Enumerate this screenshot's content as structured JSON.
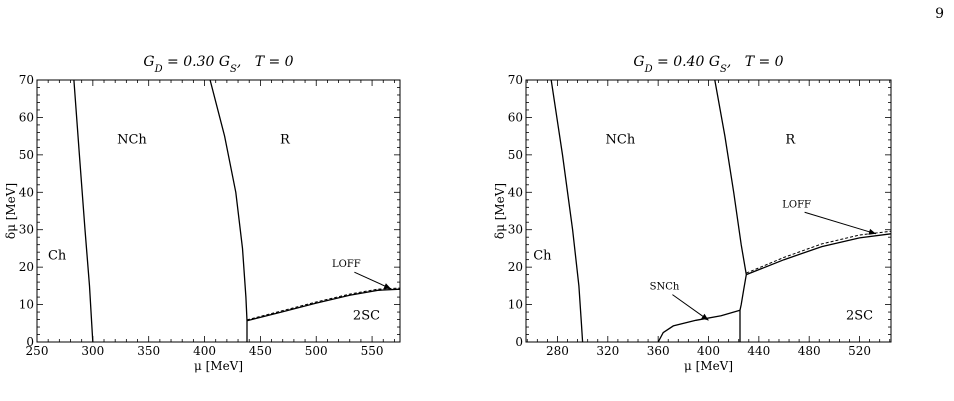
{
  "page_number": "9",
  "chart_data": [
    {
      "type": "line",
      "title": "G_D = 0.30 G_S,   T = 0",
      "xlabel": "μ [MeV]",
      "ylabel": "δμ [MeV]",
      "xlim": [
        250,
        575
      ],
      "ylim": [
        0,
        70
      ],
      "xticks": [
        250,
        300,
        350,
        400,
        450,
        500,
        550
      ],
      "yticks": [
        0,
        10,
        20,
        30,
        40,
        50,
        60,
        70
      ],
      "regions": [
        {
          "label": "Ch",
          "x": 268,
          "y": 22
        },
        {
          "label": "NCh",
          "x": 335,
          "y": 53
        },
        {
          "label": "R",
          "x": 472,
          "y": 53
        },
        {
          "label": "2SC",
          "x": 545,
          "y": 6
        }
      ],
      "series": [
        {
          "style": "solid",
          "points": [
            [
              283,
              70
            ],
            [
              288,
              50
            ],
            [
              293,
              30
            ],
            [
              297,
              15
            ],
            [
              299,
              5
            ],
            [
              300,
              0
            ]
          ]
        },
        {
          "style": "solid",
          "points": [
            [
              405,
              70
            ],
            [
              418,
              55
            ],
            [
              428,
              40
            ],
            [
              434,
              25
            ],
            [
              437,
              12
            ],
            [
              438,
              5.7
            ],
            [
              438,
              0
            ]
          ]
        },
        {
          "style": "solid",
          "points": [
            [
              438,
              5.7
            ],
            [
              470,
              8.1
            ],
            [
              500,
              10.4
            ],
            [
              530,
              12.5
            ],
            [
              555,
              13.8
            ],
            [
              575,
              14.1
            ]
          ]
        },
        {
          "style": "dashed",
          "points": [
            [
              438,
              5.9
            ],
            [
              470,
              8.4
            ],
            [
              500,
              10.7
            ],
            [
              530,
              12.8
            ],
            [
              555,
              14.1
            ],
            [
              575,
              14.4
            ]
          ]
        }
      ],
      "annotations": [
        {
          "label": "LOFF",
          "x": 527,
          "y": 20,
          "arrow_to": [
            567,
            14.2
          ]
        }
      ]
    },
    {
      "type": "line",
      "title": "G_D = 0.40 G_S,   T = 0",
      "xlabel": "μ [MeV]",
      "ylabel": "δμ [MeV]",
      "xlim": [
        255,
        545
      ],
      "ylim": [
        0,
        70
      ],
      "xticks": [
        280,
        320,
        360,
        400,
        440,
        480,
        520
      ],
      "yticks": [
        0,
        10,
        20,
        30,
        40,
        50,
        60,
        70
      ],
      "regions": [
        {
          "label": "Ch",
          "x": 268,
          "y": 22
        },
        {
          "label": "NCh",
          "x": 330,
          "y": 53
        },
        {
          "label": "R",
          "x": 465,
          "y": 53
        },
        {
          "label": "2SC",
          "x": 520,
          "y": 6
        }
      ],
      "series": [
        {
          "style": "solid",
          "points": [
            [
              275,
              70
            ],
            [
              284,
              50
            ],
            [
              292,
              30
            ],
            [
              297,
              15
            ],
            [
              299,
              5
            ],
            [
              300,
              0
            ]
          ]
        },
        {
          "style": "solid",
          "points": [
            [
              405,
              70
            ],
            [
              413,
              55
            ],
            [
              420,
              40
            ],
            [
              426,
              26
            ],
            [
              430,
              18
            ]
          ]
        },
        {
          "style": "solid",
          "points": [
            [
              430,
              18
            ],
            [
              460,
              22
            ],
            [
              490,
              25.5
            ],
            [
              520,
              27.8
            ],
            [
              545,
              28.9
            ]
          ]
        },
        {
          "style": "dashed",
          "points": [
            [
              430,
              18.4
            ],
            [
              460,
              22.6
            ],
            [
              490,
              26.2
            ],
            [
              520,
              28.6
            ],
            [
              545,
              29.6
            ]
          ]
        },
        {
          "style": "solid",
          "points": [
            [
              430,
              18
            ],
            [
              428,
              14
            ],
            [
              426,
              10
            ],
            [
              425,
              8.5
            ],
            [
              425,
              0
            ]
          ]
        },
        {
          "style": "solid",
          "points": [
            [
              360,
              0
            ],
            [
              364,
              2.5
            ],
            [
              372,
              4.3
            ],
            [
              390,
              5.8
            ],
            [
              410,
              7
            ],
            [
              425,
              8.5
            ]
          ]
        }
      ],
      "annotations": [
        {
          "label": "LOFF",
          "x": 470,
          "y": 36,
          "arrow_to": [
            533,
            28.9
          ]
        },
        {
          "label": "SNCh",
          "x": 365,
          "y": 14,
          "arrow_to": [
            400,
            5.8
          ]
        }
      ]
    }
  ]
}
